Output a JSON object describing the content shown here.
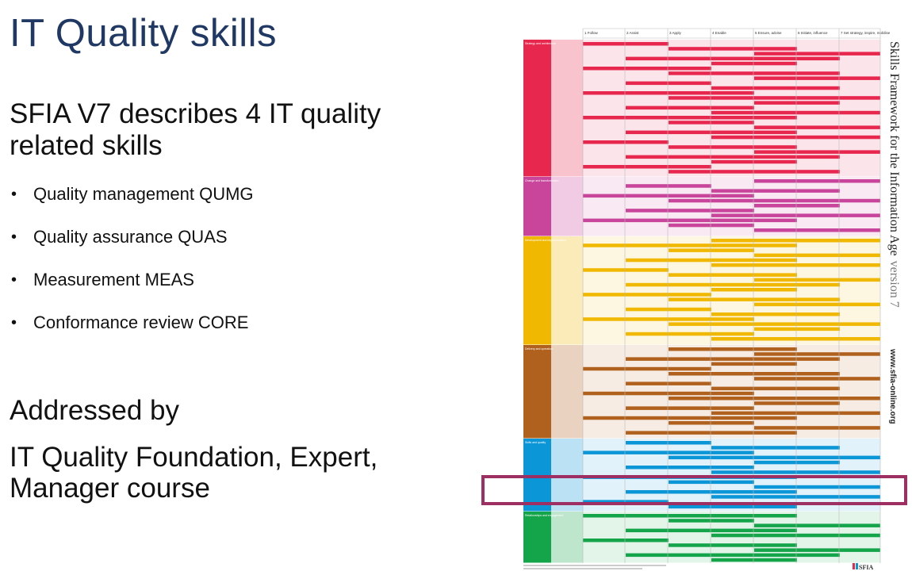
{
  "slide": {
    "title": "IT Quality skills",
    "subtitle_lines": [
      "SFIA V7 describes 4 IT quality",
      "related skills"
    ],
    "bullets": [
      "Quality management QUMG",
      "Quality assurance QUAS",
      "Measurement MEAS",
      "Conformance review CORE"
    ],
    "addressed_by": "Addressed by",
    "course_lines": [
      "IT Quality Foundation, Expert,",
      "Manager course"
    ]
  },
  "poster": {
    "side_title": "Skills Framework for the Information Age",
    "side_version": "version 7",
    "website": "www.sfia-online.org",
    "logo": "SFIA",
    "levels": [
      "1 Follow",
      "2 Assist",
      "3 Apply",
      "4 Enable",
      "5 Ensure, advise",
      "6 Initiate, influence",
      "7 Set strategy, inspire, mobilise"
    ],
    "categories": [
      {
        "name": "Strategy and architecture",
        "color": "#e8274f"
      },
      {
        "name": "Change and transformation",
        "color": "#c8459b"
      },
      {
        "name": "Development and implementation",
        "color": "#f1b800"
      },
      {
        "name": "Delivery and operation",
        "color": "#b0611d"
      },
      {
        "name": "Skills and quality",
        "color": "#0b96d8"
      },
      {
        "name": "Relationships and engagement",
        "color": "#14a54a"
      }
    ]
  }
}
